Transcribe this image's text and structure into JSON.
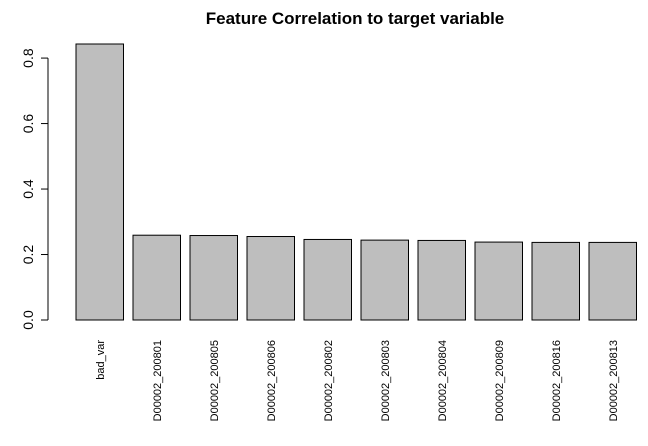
{
  "chart_data": {
    "type": "bar",
    "title": "Feature Correlation to target variable",
    "xlabel": "",
    "ylabel": "",
    "categories": [
      "bad_var",
      "D00002_200801",
      "D00002_200805",
      "D00002_200806",
      "D00002_200802",
      "D00002_200803",
      "D00002_200804",
      "D00002_200809",
      "D00002_200816",
      "D00002_200813"
    ],
    "values": [
      0.843,
      0.259,
      0.258,
      0.255,
      0.246,
      0.244,
      0.243,
      0.238,
      0.237,
      0.237
    ],
    "yticks": [
      "0.0",
      "0.2",
      "0.4",
      "0.6",
      "0.8"
    ],
    "ylim": [
      0,
      0.843
    ],
    "grid": false,
    "legend": "none",
    "colors": {
      "bar_fill": "#bebebe",
      "bar_stroke": "#000000"
    }
  }
}
